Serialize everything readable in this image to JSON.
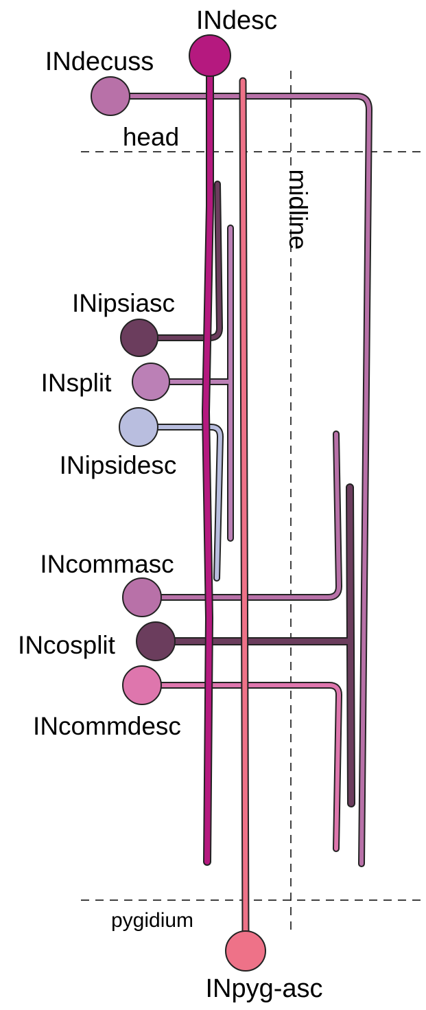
{
  "labels": {
    "head": "head",
    "pygidium": "pygidium",
    "midline": "midline"
  },
  "neurons": [
    {
      "id": "INdesc",
      "label": "INdesc",
      "color": "#b5197f"
    },
    {
      "id": "INdecuss",
      "label": "INdecuss",
      "color": "#b871a8"
    },
    {
      "id": "INipsiasc",
      "label": "INipsiasc",
      "color": "#6b3d5d"
    },
    {
      "id": "INsplit",
      "label": "INsplit",
      "color": "#bb80b6"
    },
    {
      "id": "INipsidesc",
      "label": "INipsidesc",
      "color": "#b9bedf"
    },
    {
      "id": "INcommasc",
      "label": "INcommasc",
      "color": "#b871a8"
    },
    {
      "id": "INcosplit",
      "label": "INcosplit",
      "color": "#6b3d5d"
    },
    {
      "id": "INcommdesc",
      "label": "INcommdesc",
      "color": "#de76ad"
    },
    {
      "id": "INpyg-asc",
      "label": "INpyg-asc",
      "color": "#ee7288"
    }
  ]
}
